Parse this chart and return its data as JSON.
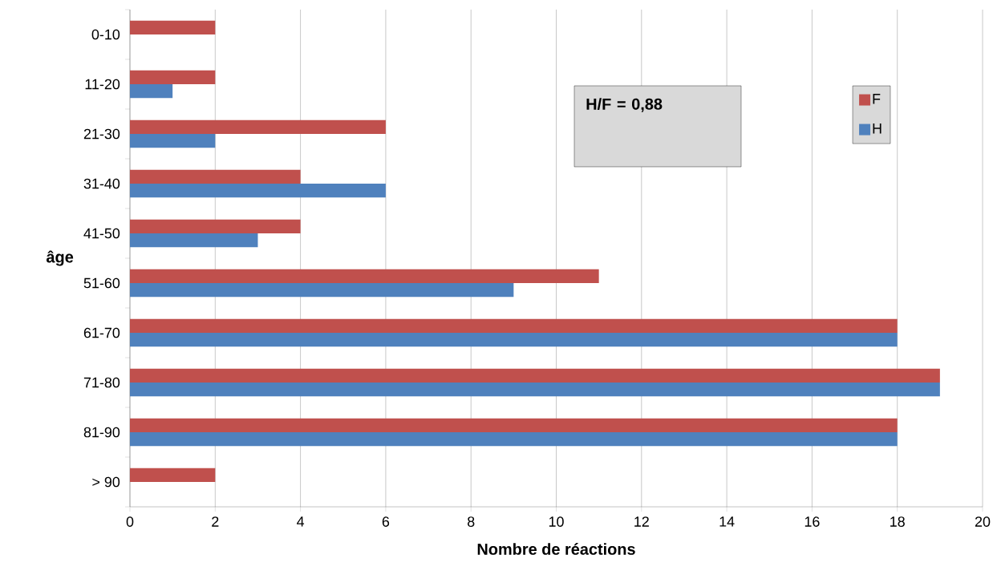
{
  "chart_data": {
    "type": "bar",
    "orientation": "horizontal",
    "xlabel": "Nombre de réactions",
    "ylabel": "âge",
    "categories": [
      "0-10",
      "11-20",
      "21-30",
      "31-40",
      "41-50",
      "51-60",
      "61-70",
      "71-80",
      "81-90",
      "> 90"
    ],
    "series": [
      {
        "name": "F",
        "color": "#c0504d",
        "values": [
          2,
          2,
          6,
          4,
          4,
          11,
          18,
          19,
          18,
          2
        ]
      },
      {
        "name": "H",
        "color": "#4f81bd",
        "values": [
          0,
          1,
          2,
          6,
          3,
          9,
          18,
          19,
          18,
          0
        ]
      }
    ],
    "xlim": [
      0,
      20
    ],
    "xticks": [
      0,
      2,
      4,
      6,
      8,
      10,
      12,
      14,
      16,
      18,
      20
    ],
    "grid": "x",
    "legend": "top right",
    "annotations": [
      "H/F = 0,88"
    ]
  }
}
